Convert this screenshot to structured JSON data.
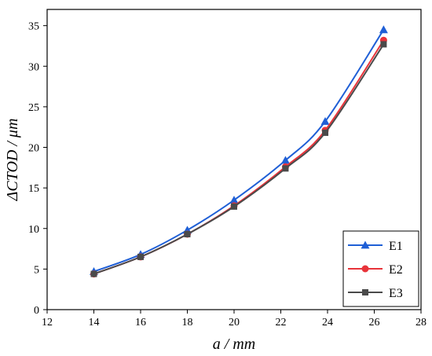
{
  "chart_data": {
    "type": "line",
    "xlabel": "a / mm",
    "ylabel": "ΔCTOD / μm",
    "xlim": [
      12,
      28
    ],
    "ylim": [
      0,
      37
    ],
    "xticks": [
      12,
      14,
      16,
      18,
      20,
      22,
      24,
      26,
      28
    ],
    "yticks": [
      0,
      5,
      10,
      15,
      20,
      25,
      30,
      35
    ],
    "grid": false,
    "legend_position": "bottom-right",
    "series": [
      {
        "name": "E1",
        "color": "#1f5fd6",
        "marker": "triangle",
        "x": [
          14.0,
          16.0,
          18.0,
          20.0,
          22.2,
          23.9,
          26.4
        ],
        "y": [
          4.7,
          6.8,
          9.8,
          13.5,
          18.4,
          23.2,
          34.5
        ]
      },
      {
        "name": "E2",
        "color": "#e8333a",
        "marker": "circle",
        "x": [
          14.0,
          16.0,
          18.0,
          20.0,
          22.2,
          23.9,
          26.4
        ],
        "y": [
          4.4,
          6.5,
          9.3,
          12.8,
          17.6,
          22.1,
          33.2
        ]
      },
      {
        "name": "E3",
        "color": "#4a4a4a",
        "marker": "square",
        "x": [
          14.0,
          16.0,
          18.0,
          20.0,
          22.2,
          23.9,
          26.4
        ],
        "y": [
          4.4,
          6.5,
          9.3,
          12.7,
          17.4,
          21.8,
          32.7
        ]
      }
    ]
  }
}
